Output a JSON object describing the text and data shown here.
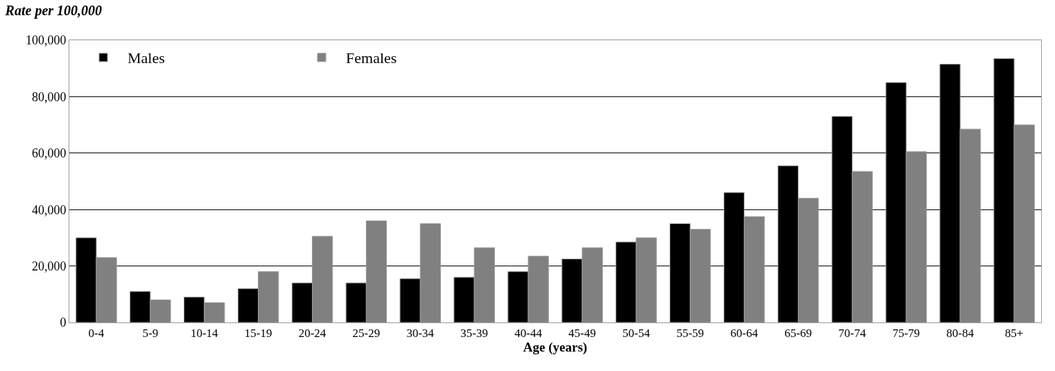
{
  "chart_data": {
    "type": "bar",
    "title": "Rate per 100,000",
    "xlabel": "Age (years)",
    "categories": [
      "0-4",
      "5-9",
      "10-14",
      "15-19",
      "20-24",
      "25-29",
      "30-34",
      "35-39",
      "40-44",
      "45-49",
      "50-54",
      "55-59",
      "60-64",
      "65-69",
      "70-74",
      "75-79",
      "80-84",
      "85+"
    ],
    "series": [
      {
        "name": "Males",
        "color": "#000000",
        "values": [
          30000,
          11000,
          9000,
          12000,
          14000,
          14000,
          15500,
          16000,
          18000,
          22500,
          28500,
          35000,
          46000,
          55500,
          73000,
          85000,
          91500,
          93500
        ]
      },
      {
        "name": "Females",
        "color": "#808080",
        "values": [
          23000,
          8000,
          7000,
          18000,
          30500,
          36000,
          35000,
          26500,
          23500,
          26500,
          30000,
          33000,
          37500,
          44000,
          53500,
          60500,
          68500,
          70000
        ]
      }
    ],
    "ylim": [
      0,
      100000
    ],
    "yticks": [
      {
        "value": 0,
        "label": "0"
      },
      {
        "value": 20000,
        "label": "20,000"
      },
      {
        "value": 40000,
        "label": "40,000"
      },
      {
        "value": 60000,
        "label": "60,000"
      },
      {
        "value": 80000,
        "label": "80,000"
      },
      {
        "value": 100000,
        "label": "100,000"
      }
    ],
    "grid": "y",
    "legend": "top left"
  }
}
